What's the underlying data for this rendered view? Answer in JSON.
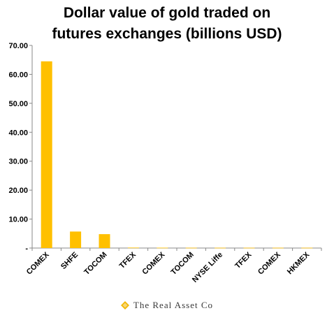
{
  "chart_data": {
    "type": "bar",
    "title_lines": [
      "Dollar value of gold traded on",
      "futures exchanges (billions USD)"
    ],
    "categories": [
      "COMEX",
      "SHFE",
      "TOCOM",
      "TFEX",
      "COMEX",
      "TOCOM",
      "NYSE Liffe",
      "TFEX",
      "COMEX",
      "HKMEX"
    ],
    "values": [
      64.5,
      5.7,
      4.8,
      0.15,
      0.12,
      0.1,
      0.1,
      0.1,
      0.1,
      0.1
    ],
    "y_ticks": [
      "-",
      "10.00",
      "20.00",
      "30.00",
      "40.00",
      "50.00",
      "60.00",
      "70.00"
    ],
    "ylim": [
      0,
      70
    ],
    "grid": false,
    "bar_color": "#FFC000",
    "axis_color": "#888888"
  },
  "footer": {
    "brand": "The Real Asset Co",
    "logo_icon": "diamond-logo-icon",
    "logo_color": "#F2B705"
  }
}
